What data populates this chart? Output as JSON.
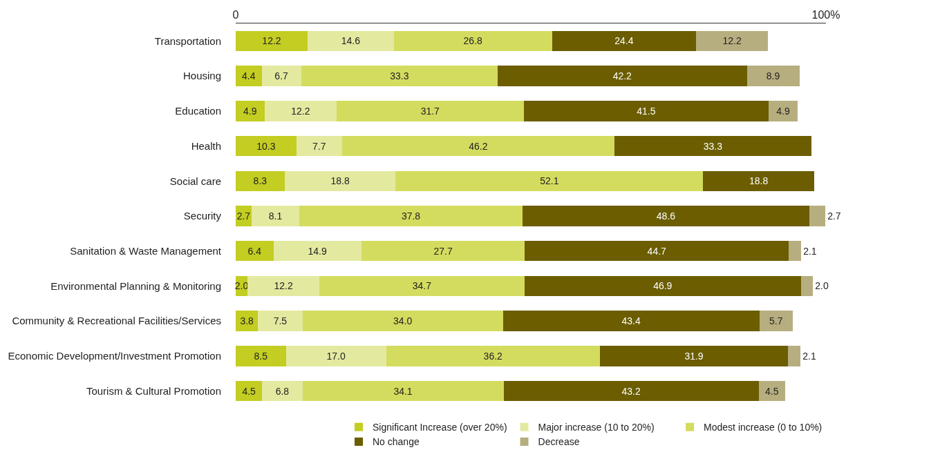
{
  "chart_data": {
    "type": "bar",
    "orientation": "horizontal",
    "stacked": true,
    "grid": false,
    "legend": "bottom right",
    "categories": [
      "Transportation",
      "Housing",
      "Education",
      "Health",
      "Social care",
      "Security",
      "Sanitation & Waste Management",
      "Environmental Planning & Monitoring",
      "Community & Recreational Facilities/Services",
      "Economic Development/Investment Promotion",
      "Tourism & Cultural Promotion"
    ],
    "xlim": [
      0,
      100
    ],
    "xticks": [
      0,
      {
        "value": 100,
        "label": "100%"
      }
    ],
    "series": [
      {
        "name": "Significant Increase (over 20%)",
        "color": "#c3cd22",
        "values": [
          12.2,
          4.4,
          4.9,
          10.3,
          8.3,
          2.7,
          6.4,
          2.0,
          3.8,
          8.5,
          4.5
        ],
        "value_labels": [
          "12.2",
          "4.4",
          "4.9",
          "10.3",
          "8.3",
          "2.7",
          "6.4",
          "2.0",
          "3.8",
          "8.5",
          "4.5"
        ]
      },
      {
        "name": "Major increase (10 to 20%)",
        "color": "#e4e9a0",
        "values": [
          14.6,
          6.7,
          12.2,
          7.7,
          18.8,
          8.1,
          14.9,
          12.2,
          7.5,
          17.0,
          6.8
        ],
        "value_labels": [
          "14.6",
          "6.7",
          "12.2",
          "7.7",
          "18.8",
          "8.1",
          "14.9",
          "12.2",
          "7.5",
          "17.0",
          "6.8"
        ]
      },
      {
        "name": "Modest increase (0 to 10%)",
        "color": "#d4dc5f",
        "values": [
          26.8,
          33.3,
          31.7,
          46.2,
          52.1,
          37.8,
          27.7,
          34.7,
          34.0,
          36.2,
          34.1
        ],
        "value_labels": [
          "26.8",
          "33.3",
          "31.7",
          "46.2",
          "52.1",
          "37.8",
          "27.7",
          "34.7",
          "34.0",
          "36.2",
          "34.1"
        ]
      },
      {
        "name": "No change",
        "color": "#6b5d00",
        "values": [
          24.4,
          42.2,
          41.5,
          33.3,
          18.8,
          48.6,
          44.7,
          46.9,
          43.4,
          31.9,
          43.2
        ],
        "value_labels": [
          "24.4",
          "42.2",
          "41.5",
          "33.3",
          "18.8",
          "48.6",
          "44.7",
          "46.9",
          "43.4",
          "31.9",
          "43.2"
        ]
      },
      {
        "name": "Decrease",
        "color": "#b7ae80",
        "values": [
          12.2,
          8.9,
          4.9,
          null,
          null,
          2.7,
          2.1,
          2.0,
          5.7,
          2.1,
          4.5
        ],
        "value_labels": [
          "12.2",
          "8.9",
          "4.9",
          null,
          null,
          "2.7",
          "2.1",
          "2.0",
          "5.7",
          "2.1",
          "4.5"
        ]
      }
    ]
  }
}
